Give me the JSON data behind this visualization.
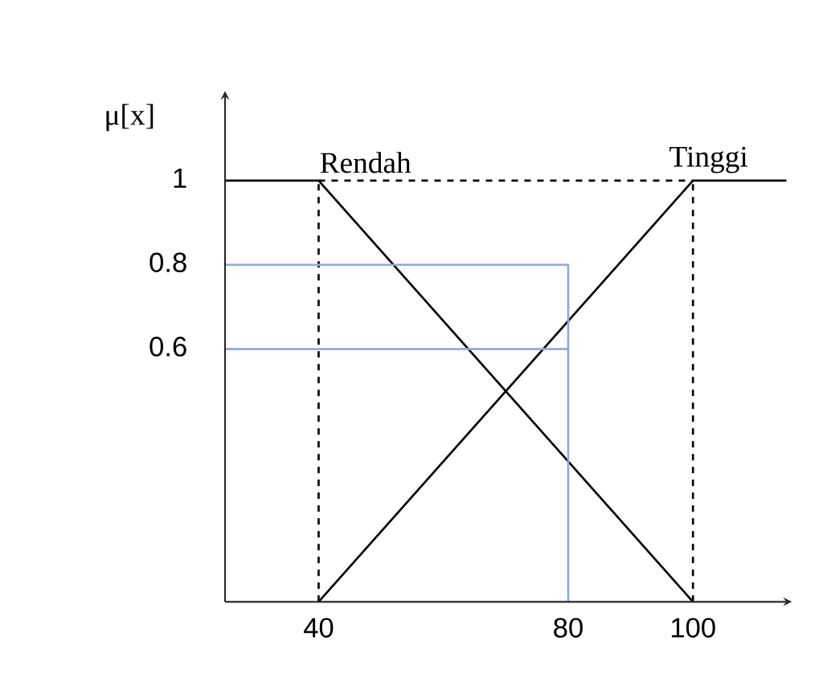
{
  "chart_data": {
    "type": "line",
    "ylabel": "μ[x]",
    "xlim": [
      25,
      115
    ],
    "ylim": [
      0,
      1.2
    ],
    "xticks": [
      40,
      80,
      100
    ],
    "yticks": [
      0.6,
      0.8,
      1
    ],
    "legend": false,
    "series": [
      {
        "name": "Rendah",
        "color": "#000000",
        "x": [
          25,
          40,
          100
        ],
        "values": [
          1,
          1,
          0
        ]
      },
      {
        "name": "Tinggi",
        "color": "#000000",
        "x": [
          40,
          100,
          115
        ],
        "values": [
          0,
          1,
          1
        ]
      },
      {
        "color": "#000000",
        "line_style": "dashed",
        "x": [
          40,
          40
        ],
        "values": [
          0,
          1
        ]
      },
      {
        "color": "#000000",
        "line_style": "dashed",
        "x": [
          100,
          100
        ],
        "values": [
          0,
          1
        ]
      },
      {
        "color": "#000000",
        "line_style": "dashed",
        "x": [
          40,
          100
        ],
        "values": [
          1,
          1
        ]
      },
      {
        "color": "#8eaadb",
        "x": [
          80,
          80,
          25
        ],
        "values": [
          0,
          0.8,
          0.8
        ]
      },
      {
        "color": "#8eaadb",
        "x": [
          80,
          25
        ],
        "values": [
          0.6,
          0.6
        ]
      }
    ]
  }
}
